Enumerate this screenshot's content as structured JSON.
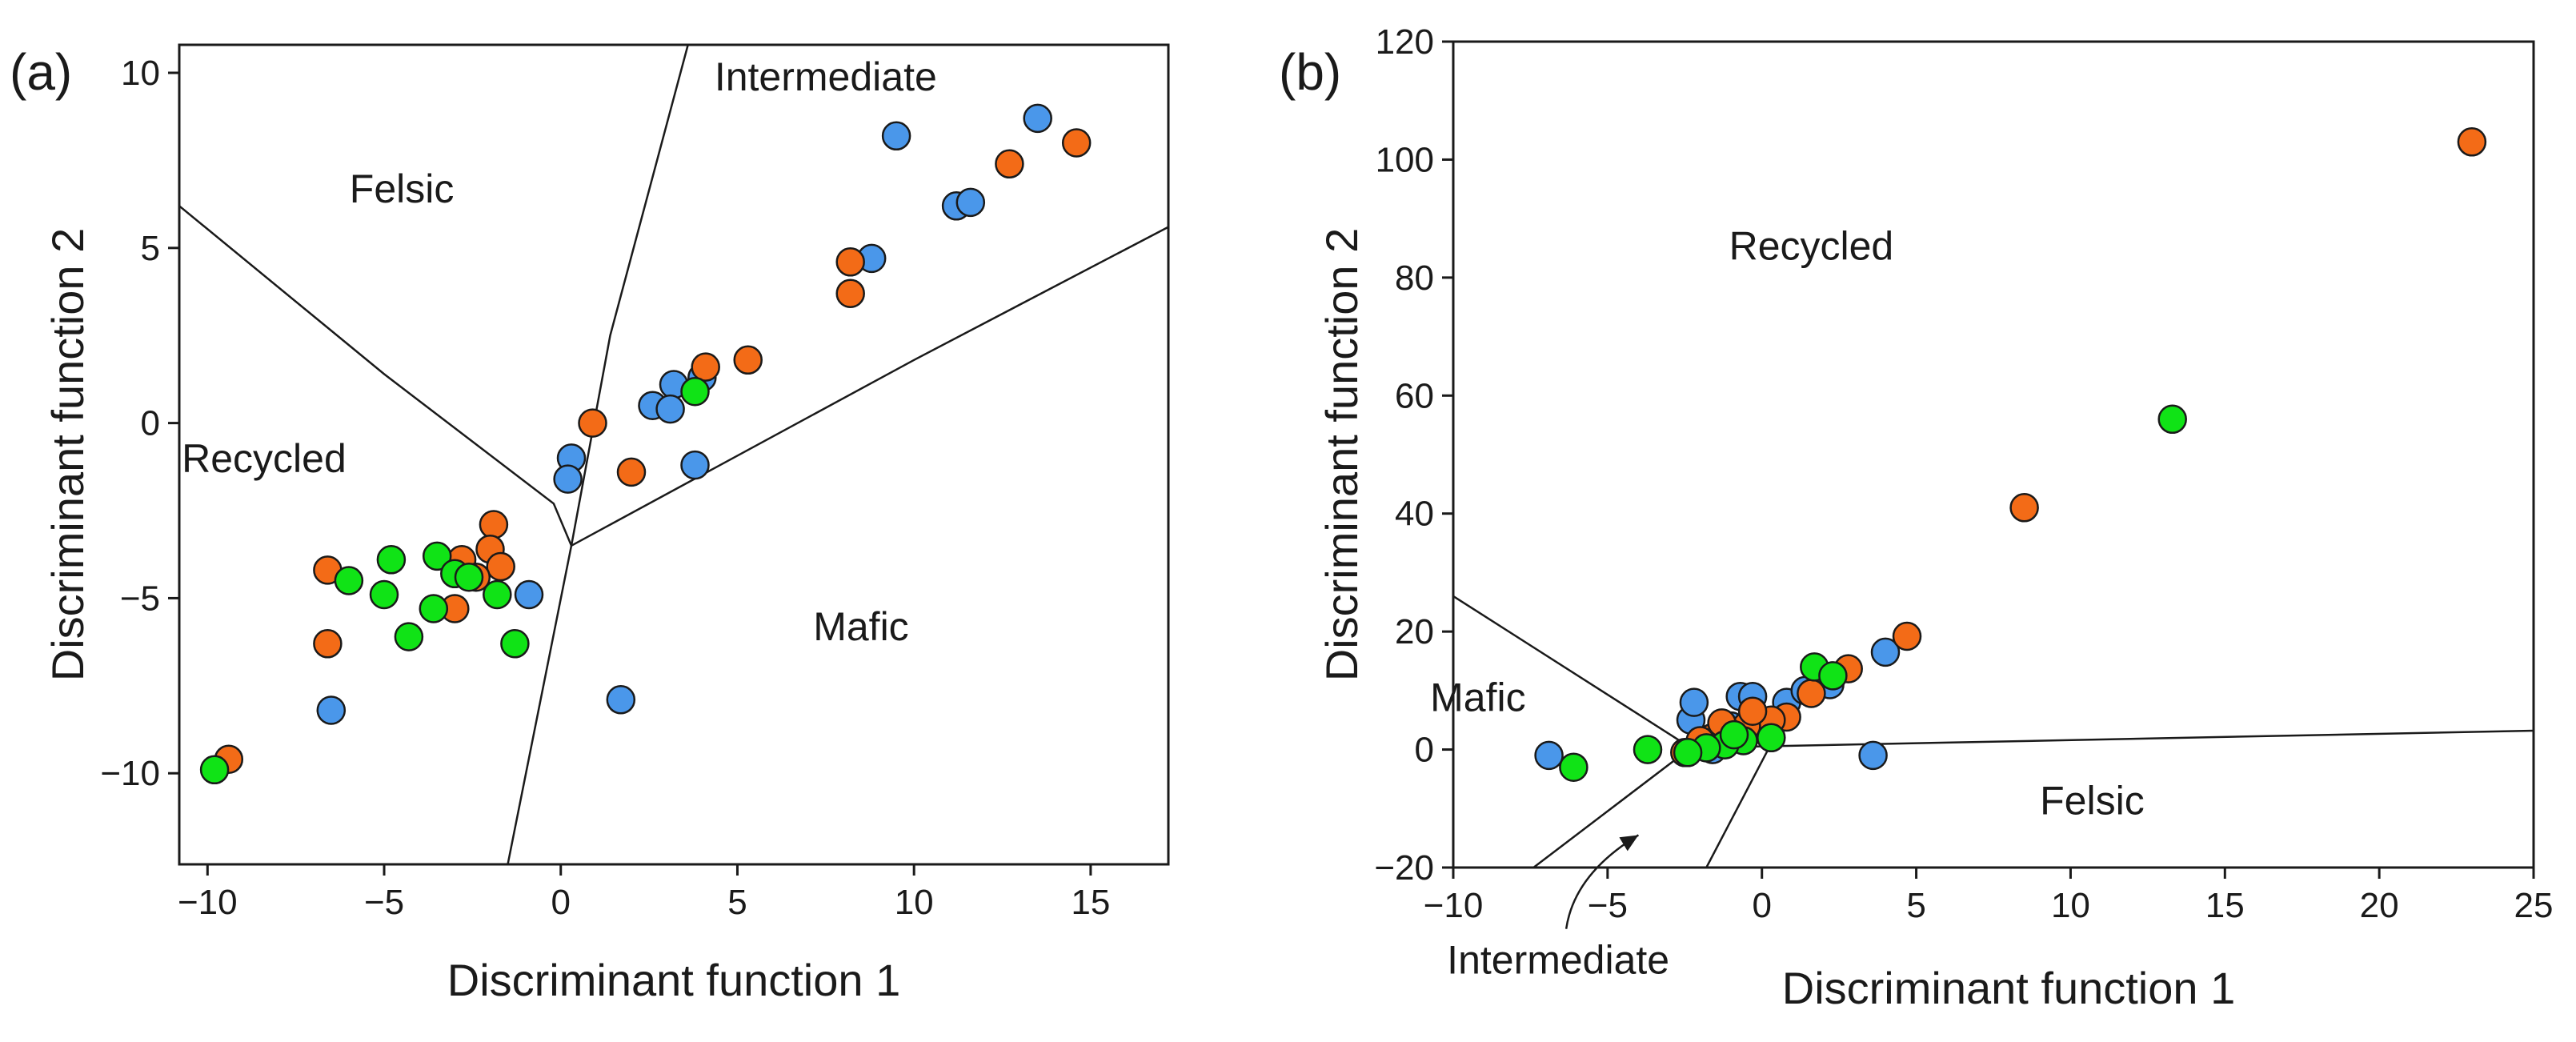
{
  "chart_data": [
    {
      "type": "scatter",
      "panel_label": "(a)",
      "title": "",
      "xlabel": "Discriminant function 1",
      "ylabel": "Discriminant function 2",
      "xlim": [
        -10.8,
        17.2
      ],
      "ylim": [
        -12.6,
        10.8
      ],
      "xticks": [
        -10,
        -5,
        0,
        5,
        10,
        15
      ],
      "yticks": [
        -10,
        -5,
        0,
        5,
        10
      ],
      "xtick_labels": [
        "−10",
        "−5",
        "0",
        "5",
        "10",
        "15"
      ],
      "ytick_labels": [
        "−10",
        "−5",
        "0",
        "5",
        "10"
      ],
      "grid": false,
      "legend": null,
      "regions": [
        {
          "name": "Felsic",
          "label": "Felsic",
          "x": -4.5,
          "y": 6.3
        },
        {
          "name": "Intermediate",
          "label": "Intermediate",
          "x": 7.5,
          "y": 9.5
        },
        {
          "name": "Recycled",
          "label": "Recycled",
          "x": -8.4,
          "y": -1.4
        },
        {
          "name": "Mafic",
          "label": "Mafic",
          "x": 8.5,
          "y": -6.2
        }
      ],
      "boundaries": [
        [
          [
            -10.8,
            6.2
          ],
          [
            -5,
            1.4
          ],
          [
            -0.2,
            -2.3
          ],
          [
            0.3,
            -3.5
          ]
        ],
        [
          [
            3.6,
            10.8
          ],
          [
            1.4,
            2.5
          ],
          [
            0.3,
            -3.5
          ]
        ],
        [
          [
            17.2,
            5.6
          ],
          [
            10,
            1.8
          ],
          [
            0.3,
            -3.5
          ]
        ],
        [
          [
            0.3,
            -3.5
          ],
          [
            -1.5,
            -12.6
          ]
        ]
      ],
      "series": [
        {
          "name": "blue",
          "color": "#4a97ea",
          "points": [
            [
              9.5,
              8.2
            ],
            [
              13.5,
              8.7
            ],
            [
              11.2,
              6.2
            ],
            [
              11.6,
              6.3
            ],
            [
              8.8,
              4.7
            ],
            [
              3.2,
              1.1
            ],
            [
              2.6,
              0.5
            ],
            [
              3.1,
              0.4
            ],
            [
              4.0,
              1.3
            ],
            [
              0.3,
              -1
            ],
            [
              0.2,
              -1.6
            ],
            [
              3.8,
              -1.2
            ],
            [
              -0.9,
              -4.9
            ],
            [
              -6.5,
              -8.2
            ],
            [
              1.7,
              -7.9
            ]
          ]
        },
        {
          "name": "orange",
          "color": "#f36b17",
          "points": [
            [
              14.6,
              8.0
            ],
            [
              12.7,
              7.4
            ],
            [
              8.2,
              4.6
            ],
            [
              8.2,
              3.7
            ],
            [
              5.3,
              1.8
            ],
            [
              4.1,
              1.6
            ],
            [
              0.9,
              0
            ],
            [
              2.0,
              -1.4
            ],
            [
              -1.9,
              -2.9
            ],
            [
              -2.0,
              -3.6
            ],
            [
              -1.7,
              -4.1
            ],
            [
              -6.6,
              -4.2
            ],
            [
              -2.8,
              -3.9
            ],
            [
              -2.4,
              -4.4
            ],
            [
              -3.0,
              -5.3
            ],
            [
              -6.6,
              -6.3
            ],
            [
              -9.4,
              -9.6
            ]
          ]
        },
        {
          "name": "green",
          "color": "#10e316",
          "points": [
            [
              3.8,
              0.9
            ],
            [
              -3.5,
              -3.8
            ],
            [
              -3.0,
              -4.3
            ],
            [
              -2.6,
              -4.4
            ],
            [
              -4.8,
              -3.9
            ],
            [
              -6.0,
              -4.5
            ],
            [
              -5.0,
              -4.9
            ],
            [
              -3.6,
              -5.3
            ],
            [
              -1.8,
              -4.9
            ],
            [
              -4.3,
              -6.1
            ],
            [
              -1.3,
              -6.3
            ],
            [
              -9.8,
              -9.9
            ]
          ]
        }
      ]
    },
    {
      "type": "scatter",
      "panel_label": "(b)",
      "title": "",
      "xlabel": "Discriminant function 1",
      "ylabel": "Discriminant function 2",
      "xlim": [
        -10,
        25
      ],
      "ylim": [
        -20,
        120
      ],
      "xticks": [
        -10,
        -5,
        0,
        5,
        10,
        15,
        20,
        25
      ],
      "yticks": [
        -20,
        0,
        20,
        40,
        60,
        80,
        100,
        120
      ],
      "xtick_labels": [
        "−10",
        "−5",
        "0",
        "5",
        "10",
        "15",
        "20",
        "25"
      ],
      "ytick_labels": [
        "−20",
        "0",
        "20",
        "40",
        "60",
        "80",
        "100",
        "120"
      ],
      "grid": false,
      "legend": null,
      "regions": [
        {
          "name": "Recycled",
          "label": "Recycled",
          "x": 1.6,
          "y": 83
        },
        {
          "name": "Mafic",
          "label": "Mafic",
          "x": -9.2,
          "y": 6.5
        },
        {
          "name": "Felsic",
          "label": "Felsic",
          "x": 10.7,
          "y": -11
        }
      ],
      "boundaries": [
        [
          [
            -10,
            26
          ],
          [
            -2.3,
            0.3
          ]
        ],
        [
          [
            -2.3,
            0.3
          ],
          [
            25,
            3.2
          ]
        ],
        [
          [
            -2.3,
            0.3
          ],
          [
            -7.4,
            -20
          ]
        ],
        [
          [
            0.3,
            1
          ],
          [
            -1.8,
            -20
          ]
        ]
      ],
      "annotation": {
        "text": "Intermediate",
        "text_x": -6.6,
        "text_y": -38,
        "arrow_tip": [
          -4.0,
          -14.5
        ]
      },
      "series": [
        {
          "name": "blue",
          "color": "#4a97ea",
          "points": [
            [
              -6.9,
              -1
            ],
            [
              -2.3,
              5
            ],
            [
              -2.2,
              8
            ],
            [
              -0.7,
              9
            ],
            [
              -0.3,
              9
            ],
            [
              0.8,
              8
            ],
            [
              1.4,
              10
            ],
            [
              2.2,
              11
            ],
            [
              4.0,
              16.5
            ],
            [
              3.6,
              -1
            ],
            [
              -1.6,
              0
            ],
            [
              -1,
              4
            ]
          ]
        },
        {
          "name": "orange",
          "color": "#f36b17",
          "points": [
            [
              23,
              103
            ],
            [
              8.5,
              41
            ],
            [
              4.7,
              19.2
            ],
            [
              2.8,
              13.7
            ],
            [
              1.6,
              9.5
            ],
            [
              0.8,
              5.5
            ],
            [
              0.3,
              5
            ],
            [
              -0.5,
              4
            ],
            [
              -1.1,
              3
            ],
            [
              -1.6,
              2
            ],
            [
              -2.0,
              1.5
            ],
            [
              -2.5,
              -0.5
            ],
            [
              -1.3,
              4.5
            ],
            [
              -0.3,
              6.5
            ]
          ]
        },
        {
          "name": "green",
          "color": "#10e316",
          "points": [
            [
              13.3,
              56
            ],
            [
              1.7,
              14
            ],
            [
              2.3,
              12.5
            ],
            [
              -3.7,
              0
            ],
            [
              -6.1,
              -3
            ],
            [
              0.3,
              2
            ],
            [
              -0.6,
              1.5
            ],
            [
              -1.2,
              0.8
            ],
            [
              -1.8,
              0.3
            ],
            [
              -2.4,
              -0.5
            ],
            [
              -0.9,
              2.5
            ]
          ]
        }
      ]
    }
  ]
}
